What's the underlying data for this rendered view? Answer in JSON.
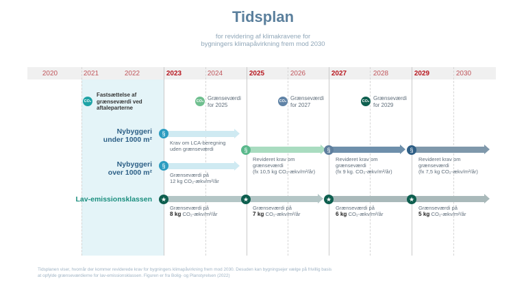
{
  "title": "Tidsplan",
  "subtitle_line1": "for revidering af klimakravene for",
  "subtitle_line2": "bygningers klimapåvirkning frem mod 2030",
  "years": [
    "2020",
    "2021",
    "2022",
    "2023",
    "2024",
    "2025",
    "2026",
    "2027",
    "2028",
    "2029",
    "2030"
  ],
  "co2_badge": "CO₂",
  "milestones": {
    "m2021": {
      "line1": "Fastsættelse af",
      "line2": "grænseværdi ved",
      "line3": "aftaleparterne"
    },
    "m2025": {
      "line1": "Grænseværdi",
      "line2": "for 2025"
    },
    "m2027": {
      "line1": "Grænseværdi",
      "line2": "for 2027"
    },
    "m2029": {
      "line1": "Grænseværdi",
      "line2": "for 2029"
    }
  },
  "rows": {
    "under": {
      "line1": "Nybyggeri",
      "line2": "under 1000 m²"
    },
    "over": {
      "line1": "Nybyggeri",
      "line2": "over 1000 m²"
    },
    "lav": {
      "label": "Lav-emissionsklassen"
    }
  },
  "paragraph_symbol": "§",
  "star_symbol": "★",
  "labels": {
    "u2023": {
      "line1": "Krav om LCA-beregning",
      "line2": "uden grænseværdi"
    },
    "u2025": {
      "line1": "Revideret krav om",
      "line2": "grænseværdi",
      "line3": "(fx 10,5 kg CO₂-ækv/m²/år)"
    },
    "u2027": {
      "line1": "Revideret krav om",
      "line2": "grænseværdi",
      "line3": "(fx 9 kg. CO₂-ækv/m²/år)"
    },
    "u2029": {
      "line1": "Revideret krav om",
      "line2": "grænseværdi",
      "line3": "(fx 7,5 kg CO₂-ækv/m²/år)"
    },
    "o2023": {
      "line1": "Grænseværdi på",
      "line2": "12 kg CO₂-ækv/m²/år"
    },
    "l2023": {
      "line1": "Grænseværdi på",
      "value": "8 kg",
      "unit": " CO₂-ækv/m²/år"
    },
    "l2025": {
      "line1": "Grænseværdi på",
      "value": "7 kg",
      "unit": " CO₂-ækv/m²/år"
    },
    "l2027": {
      "line1": "Grænseværdi på",
      "value": "6 kg",
      "unit": " CO₂-ækv/m²/år"
    },
    "l2029": {
      "line1": "Grænseværdi på",
      "value": "5 kg",
      "unit": " CO₂-ækv/m²/år"
    }
  },
  "footer": "Tidsplanen viser, hvornår der kommer reviderede krav for bygningers klimapåvirkning frem mod 2030. Desuden kan bygningsejer vælge på frivillig basis at opfylde grænseværdierne for lav-emissionsklassen. Figuren er fra Bolig- og Planstyrelsen (2022)",
  "colors": {
    "title": "#5a7f9c",
    "year_red": "#b7171f",
    "highlight": "#e4f4f8",
    "teal": "#1a8e7e",
    "green": "#5bb98c",
    "slate": "#5f7f9e",
    "navy": "#2f5f86",
    "darkgreen": "#0e5f4f"
  }
}
